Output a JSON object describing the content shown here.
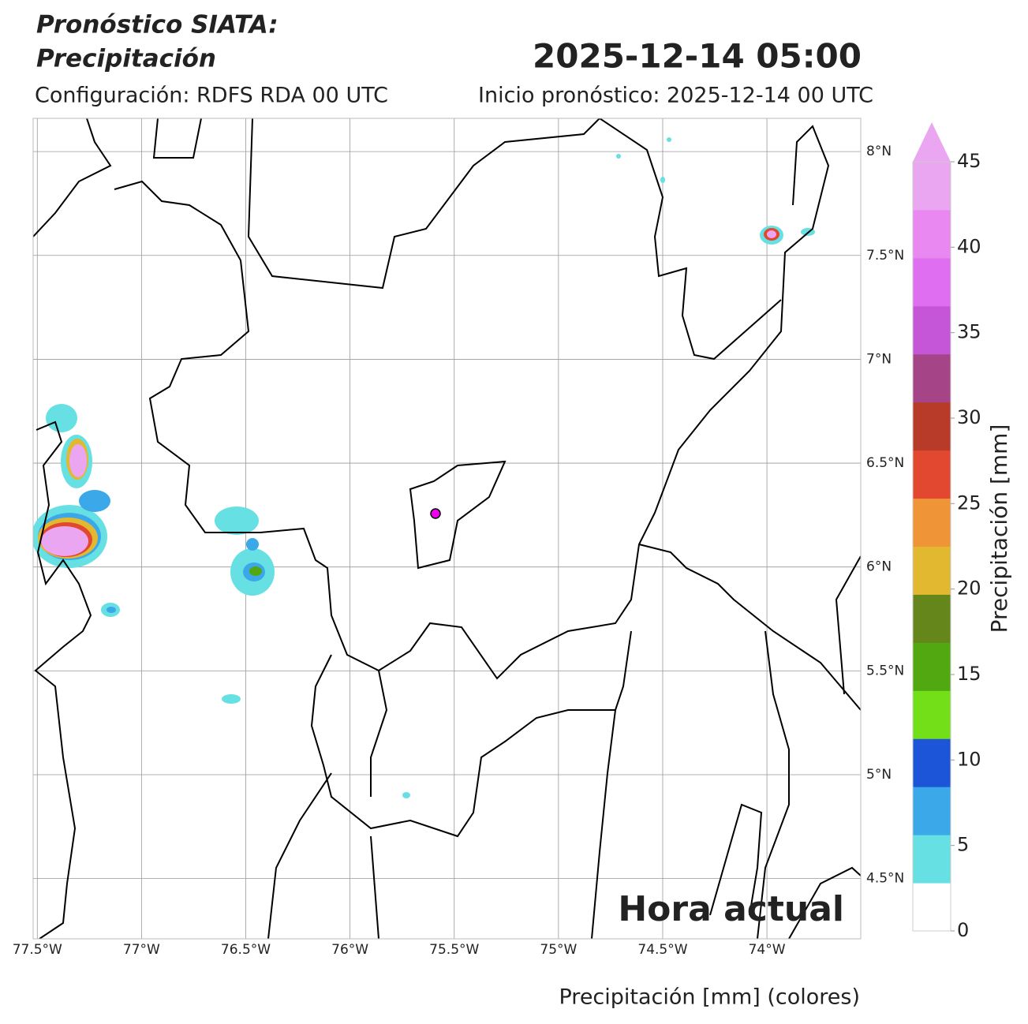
{
  "chart_data": {
    "type": "map",
    "title_lines": [
      "Pronóstico SIATA:",
      "Precipitación"
    ],
    "date": "2025-12-14 05:00",
    "config": "Configuración: RDFS RDA 00 UTC",
    "start": "Inicio pronóstico: 2025-12-14 00 UTC",
    "annotation": "Hora actual",
    "xlabel": "Precipitación [mm] (colores)",
    "xlim": [
      -77.52,
      -73.55
    ],
    "ylim": [
      4.21,
      8.16
    ],
    "xticks": [
      {
        "value": -77.5,
        "label": "77.5°W"
      },
      {
        "value": -77,
        "label": "77°W"
      },
      {
        "value": -76.5,
        "label": "76.5°W"
      },
      {
        "value": -76,
        "label": "76°W"
      },
      {
        "value": -75.5,
        "label": "75.5°W"
      },
      {
        "value": -75,
        "label": "75°W"
      },
      {
        "value": -74.5,
        "label": "74.5°W"
      },
      {
        "value": -74,
        "label": "74°W"
      }
    ],
    "yticks": [
      {
        "value": 8,
        "label": "8°N"
      },
      {
        "value": 7.5,
        "label": "7.5°N"
      },
      {
        "value": 7,
        "label": "7°N"
      },
      {
        "value": 6.5,
        "label": "6.5°N"
      },
      {
        "value": 6,
        "label": "6°N"
      },
      {
        "value": 5.5,
        "label": "5.5°N"
      },
      {
        "value": 5,
        "label": "5°N"
      },
      {
        "value": 4.5,
        "label": "4.5°N"
      }
    ],
    "grid": true,
    "colorbar": {
      "label": "Precipitación [mm]",
      "lim": [
        0,
        45
      ],
      "ticks": [
        0,
        5,
        10,
        15,
        20,
        25,
        30,
        35,
        40,
        45
      ],
      "extend": "max",
      "colors": [
        "#ffffff",
        "#66e0e3",
        "#3ba8ea",
        "#1c55d8",
        "#73df18",
        "#52a810",
        "#64861a",
        "#e2b830",
        "#f09438",
        "#e24830",
        "#b83a28",
        "#a64488",
        "#c656d8",
        "#e06ef0",
        "#e888f0",
        "#eaa6f0"
      ]
    }
  }
}
